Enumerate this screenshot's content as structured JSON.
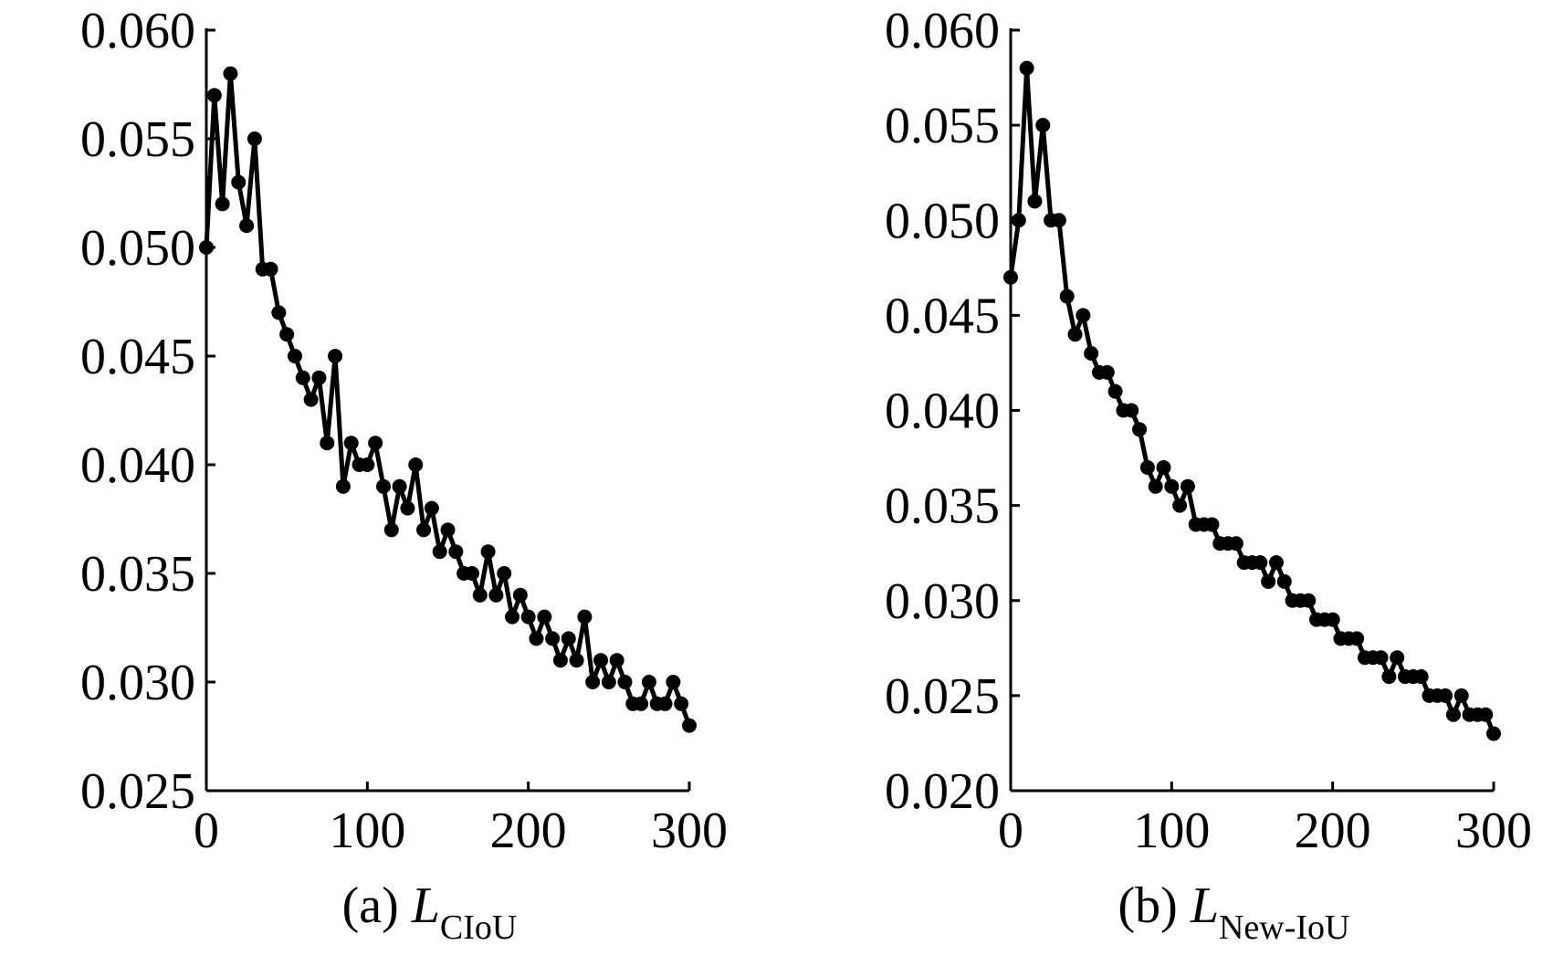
{
  "chart_data": [
    {
      "type": "line",
      "markers": true,
      "caption": {
        "label": "(a)",
        "symbol": "L",
        "subscript": "CIoU"
      },
      "x": [
        0,
        5,
        10,
        15,
        20,
        25,
        30,
        35,
        40,
        45,
        50,
        55,
        60,
        65,
        70,
        75,
        80,
        85,
        90,
        95,
        100,
        105,
        110,
        115,
        120,
        125,
        130,
        135,
        140,
        145,
        150,
        155,
        160,
        165,
        170,
        175,
        180,
        185,
        190,
        195,
        200,
        205,
        210,
        215,
        220,
        225,
        230,
        235,
        240,
        245,
        250,
        255,
        260,
        265,
        270,
        275,
        280,
        285,
        290,
        295,
        300
      ],
      "series": [
        {
          "color": "#000000",
          "values": [
            0.05,
            0.057,
            0.052,
            0.058,
            0.053,
            0.051,
            0.055,
            0.049,
            0.049,
            0.047,
            0.046,
            0.045,
            0.044,
            0.043,
            0.044,
            0.041,
            0.045,
            0.039,
            0.041,
            0.04,
            0.04,
            0.041,
            0.039,
            0.037,
            0.039,
            0.038,
            0.04,
            0.037,
            0.038,
            0.036,
            0.037,
            0.036,
            0.035,
            0.035,
            0.034,
            0.036,
            0.034,
            0.035,
            0.033,
            0.034,
            0.033,
            0.032,
            0.033,
            0.032,
            0.031,
            0.032,
            0.031,
            0.033,
            0.03,
            0.031,
            0.03,
            0.031,
            0.03,
            0.029,
            0.029,
            0.03,
            0.029,
            0.029,
            0.03,
            0.029,
            0.028
          ]
        }
      ],
      "xlim": [
        0,
        300
      ],
      "xticks": [
        0,
        100,
        200,
        300
      ],
      "ylim": [
        0.025,
        0.06
      ],
      "yticks": [
        {
          "value": 0.025,
          "label": "0.025"
        },
        {
          "value": 0.03,
          "label": "0.030"
        },
        {
          "value": 0.035,
          "label": "0.035"
        },
        {
          "value": 0.04,
          "label": "0.040"
        },
        {
          "value": 0.045,
          "label": "0.045"
        },
        {
          "value": 0.05,
          "label": "0.050"
        },
        {
          "value": 0.055,
          "label": "0.055"
        },
        {
          "value": 0.06,
          "label": "0.060"
        }
      ]
    },
    {
      "type": "line",
      "markers": true,
      "caption": {
        "label": "(b)",
        "symbol": "L",
        "subscript": "New-IoU"
      },
      "x": [
        0,
        5,
        10,
        15,
        20,
        25,
        30,
        35,
        40,
        45,
        50,
        55,
        60,
        65,
        70,
        75,
        80,
        85,
        90,
        95,
        100,
        105,
        110,
        115,
        120,
        125,
        130,
        135,
        140,
        145,
        150,
        155,
        160,
        165,
        170,
        175,
        180,
        185,
        190,
        195,
        200,
        205,
        210,
        215,
        220,
        225,
        230,
        235,
        240,
        245,
        250,
        255,
        260,
        265,
        270,
        275,
        280,
        285,
        290,
        295,
        300
      ],
      "series": [
        {
          "color": "#000000",
          "values": [
            0.047,
            0.05,
            0.058,
            0.051,
            0.055,
            0.05,
            0.05,
            0.046,
            0.044,
            0.045,
            0.043,
            0.042,
            0.042,
            0.041,
            0.04,
            0.04,
            0.039,
            0.037,
            0.036,
            0.037,
            0.036,
            0.035,
            0.036,
            0.034,
            0.034,
            0.034,
            0.033,
            0.033,
            0.033,
            0.032,
            0.032,
            0.032,
            0.031,
            0.032,
            0.031,
            0.03,
            0.03,
            0.03,
            0.029,
            0.029,
            0.029,
            0.028,
            0.028,
            0.028,
            0.027,
            0.027,
            0.027,
            0.026,
            0.027,
            0.026,
            0.026,
            0.026,
            0.025,
            0.025,
            0.025,
            0.024,
            0.025,
            0.024,
            0.024,
            0.024,
            0.023
          ]
        }
      ],
      "xlim": [
        0,
        300
      ],
      "xticks": [
        0,
        100,
        200,
        300
      ],
      "ylim": [
        0.02,
        0.06
      ],
      "yticks": [
        {
          "value": 0.02,
          "label": "0.020"
        },
        {
          "value": 0.025,
          "label": "0.025"
        },
        {
          "value": 0.03,
          "label": "0.030"
        },
        {
          "value": 0.035,
          "label": "0.035"
        },
        {
          "value": 0.04,
          "label": "0.040"
        },
        {
          "value": 0.045,
          "label": "0.045"
        },
        {
          "value": 0.05,
          "label": "0.050"
        },
        {
          "value": 0.055,
          "label": "0.055"
        },
        {
          "value": 0.06,
          "label": "0.060"
        }
      ]
    }
  ]
}
